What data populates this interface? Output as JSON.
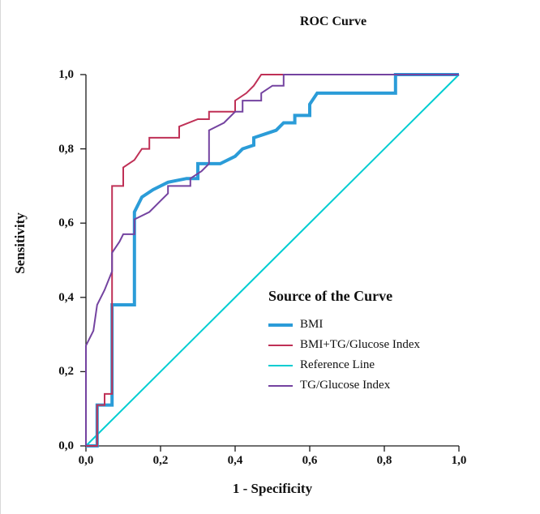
{
  "chart_data": {
    "type": "line",
    "title": "ROC Curve",
    "xlabel": "1 - Specificity",
    "ylabel": "Sensitivity",
    "xlim": [
      0,
      1
    ],
    "ylim": [
      0,
      1
    ],
    "grid": false,
    "legend_position": "inside-lower-right",
    "legend_title": "Source of the Curve",
    "x_ticks": [
      {
        "value": 0.0,
        "label": "0,0"
      },
      {
        "value": 0.2,
        "label": "0,2"
      },
      {
        "value": 0.4,
        "label": "0,4"
      },
      {
        "value": 0.6,
        "label": "0,6"
      },
      {
        "value": 0.8,
        "label": "0,8"
      },
      {
        "value": 1.0,
        "label": "1,0"
      }
    ],
    "y_ticks": [
      {
        "value": 0.0,
        "label": "0,0"
      },
      {
        "value": 0.2,
        "label": "0,2"
      },
      {
        "value": 0.4,
        "label": "0,4"
      },
      {
        "value": 0.6,
        "label": "0,6"
      },
      {
        "value": 0.8,
        "label": "0,8"
      },
      {
        "value": 1.0,
        "label": "1,0"
      }
    ],
    "series": [
      {
        "name": "BMI",
        "color": "#2b9cd8",
        "width": 4,
        "points": [
          [
            0,
            0
          ],
          [
            0.03,
            0
          ],
          [
            0.03,
            0.11
          ],
          [
            0.07,
            0.11
          ],
          [
            0.07,
            0.38
          ],
          [
            0.13,
            0.38
          ],
          [
            0.13,
            0.63
          ],
          [
            0.15,
            0.67
          ],
          [
            0.18,
            0.69
          ],
          [
            0.22,
            0.71
          ],
          [
            0.27,
            0.72
          ],
          [
            0.3,
            0.72
          ],
          [
            0.3,
            0.76
          ],
          [
            0.36,
            0.76
          ],
          [
            0.4,
            0.78
          ],
          [
            0.42,
            0.8
          ],
          [
            0.45,
            0.81
          ],
          [
            0.45,
            0.83
          ],
          [
            0.48,
            0.84
          ],
          [
            0.51,
            0.85
          ],
          [
            0.53,
            0.87
          ],
          [
            0.56,
            0.87
          ],
          [
            0.56,
            0.89
          ],
          [
            0.6,
            0.89
          ],
          [
            0.6,
            0.92
          ],
          [
            0.62,
            0.95
          ],
          [
            0.65,
            0.95
          ],
          [
            0.83,
            0.95
          ],
          [
            0.83,
            1.0
          ],
          [
            1.0,
            1.0
          ]
        ]
      },
      {
        "name": "BMI+TG/Glucose Index",
        "color": "#bf3056",
        "width": 2,
        "points": [
          [
            0,
            0
          ],
          [
            0.03,
            0
          ],
          [
            0.03,
            0.11
          ],
          [
            0.05,
            0.11
          ],
          [
            0.05,
            0.14
          ],
          [
            0.07,
            0.14
          ],
          [
            0.07,
            0.7
          ],
          [
            0.1,
            0.7
          ],
          [
            0.1,
            0.75
          ],
          [
            0.13,
            0.77
          ],
          [
            0.15,
            0.8
          ],
          [
            0.17,
            0.8
          ],
          [
            0.17,
            0.83
          ],
          [
            0.25,
            0.83
          ],
          [
            0.25,
            0.86
          ],
          [
            0.3,
            0.88
          ],
          [
            0.33,
            0.88
          ],
          [
            0.33,
            0.9
          ],
          [
            0.4,
            0.9
          ],
          [
            0.4,
            0.93
          ],
          [
            0.43,
            0.95
          ],
          [
            0.45,
            0.97
          ],
          [
            0.47,
            1.0
          ],
          [
            1.0,
            1.0
          ]
        ]
      },
      {
        "name": "Reference Line",
        "color": "#00cdd1",
        "width": 2,
        "points": [
          [
            0,
            0
          ],
          [
            1,
            1
          ]
        ]
      },
      {
        "name": "TG/Glucose Index",
        "color": "#7443a0",
        "width": 2,
        "points": [
          [
            0,
            0
          ],
          [
            0,
            0.27
          ],
          [
            0.02,
            0.31
          ],
          [
            0.03,
            0.38
          ],
          [
            0.05,
            0.42
          ],
          [
            0.07,
            0.47
          ],
          [
            0.07,
            0.52
          ],
          [
            0.09,
            0.55
          ],
          [
            0.1,
            0.57
          ],
          [
            0.13,
            0.57
          ],
          [
            0.13,
            0.61
          ],
          [
            0.17,
            0.63
          ],
          [
            0.2,
            0.66
          ],
          [
            0.22,
            0.68
          ],
          [
            0.22,
            0.7
          ],
          [
            0.28,
            0.7
          ],
          [
            0.28,
            0.72
          ],
          [
            0.31,
            0.74
          ],
          [
            0.33,
            0.76
          ],
          [
            0.33,
            0.85
          ],
          [
            0.37,
            0.87
          ],
          [
            0.4,
            0.9
          ],
          [
            0.42,
            0.9
          ],
          [
            0.42,
            0.93
          ],
          [
            0.47,
            0.93
          ],
          [
            0.47,
            0.95
          ],
          [
            0.5,
            0.97
          ],
          [
            0.53,
            0.97
          ],
          [
            0.53,
            1.0
          ],
          [
            1.0,
            1.0
          ]
        ]
      }
    ]
  }
}
